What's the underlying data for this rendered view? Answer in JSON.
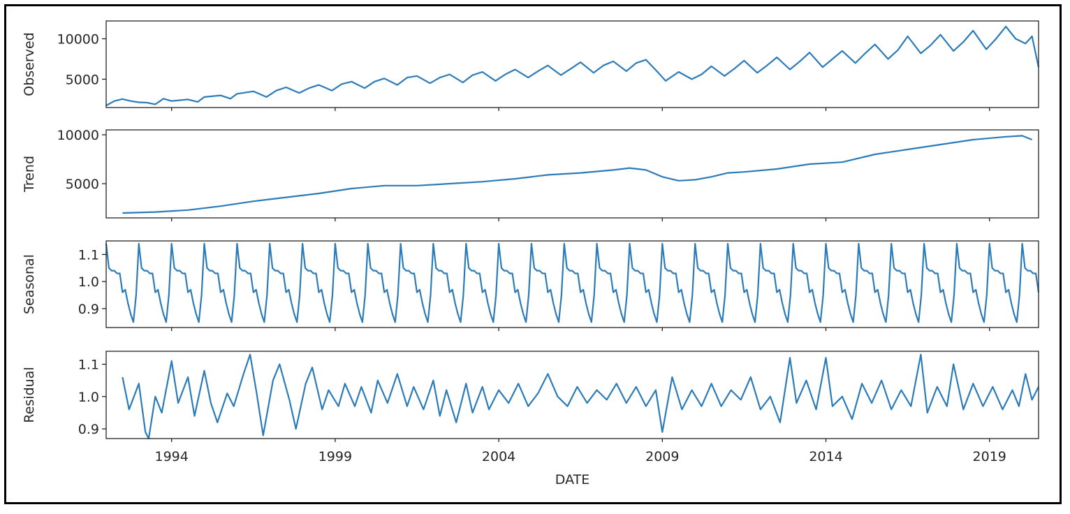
{
  "chart_data": {
    "type": "line",
    "series_color": "#2b7bb9",
    "x_label": "DATE",
    "x_range": [
      1992.0,
      2020.5
    ],
    "x_ticks": [
      1994,
      1999,
      2004,
      2009,
      2014,
      2019
    ],
    "x_tick_labels": [
      "1994",
      "1999",
      "2004",
      "2009",
      "2014",
      "2019"
    ],
    "grid": false,
    "panels": [
      {
        "name": "observed",
        "ylabel": "Observed",
        "ylim": [
          1500,
          12200
        ],
        "yticks": [
          5000,
          10000
        ],
        "ytick_labels": [
          "5000",
          "10000"
        ],
        "points": [
          [
            1992.0,
            1750
          ],
          [
            1992.25,
            2300
          ],
          [
            1992.5,
            2550
          ],
          [
            1992.75,
            2300
          ],
          [
            1993.0,
            2150
          ],
          [
            1993.25,
            2100
          ],
          [
            1993.5,
            1900
          ],
          [
            1993.75,
            2600
          ],
          [
            1994.0,
            2300
          ],
          [
            1994.5,
            2500
          ],
          [
            1994.8,
            2200
          ],
          [
            1995.0,
            2800
          ],
          [
            1995.5,
            3000
          ],
          [
            1995.8,
            2600
          ],
          [
            1996.0,
            3200
          ],
          [
            1996.5,
            3500
          ],
          [
            1996.9,
            2800
          ],
          [
            1997.2,
            3600
          ],
          [
            1997.5,
            4000
          ],
          [
            1997.9,
            3300
          ],
          [
            1998.2,
            3900
          ],
          [
            1998.5,
            4300
          ],
          [
            1998.9,
            3600
          ],
          [
            1999.2,
            4400
          ],
          [
            1999.5,
            4700
          ],
          [
            1999.9,
            3900
          ],
          [
            2000.2,
            4700
          ],
          [
            2000.5,
            5100
          ],
          [
            2000.9,
            4300
          ],
          [
            2001.2,
            5200
          ],
          [
            2001.5,
            5400
          ],
          [
            2001.9,
            4500
          ],
          [
            2002.2,
            5200
          ],
          [
            2002.5,
            5600
          ],
          [
            2002.9,
            4600
          ],
          [
            2003.2,
            5500
          ],
          [
            2003.5,
            5900
          ],
          [
            2003.9,
            4800
          ],
          [
            2004.2,
            5600
          ],
          [
            2004.5,
            6200
          ],
          [
            2004.9,
            5200
          ],
          [
            2005.2,
            6000
          ],
          [
            2005.5,
            6700
          ],
          [
            2005.9,
            5500
          ],
          [
            2006.2,
            6300
          ],
          [
            2006.5,
            7100
          ],
          [
            2006.9,
            5800
          ],
          [
            2007.2,
            6700
          ],
          [
            2007.5,
            7200
          ],
          [
            2007.9,
            6000
          ],
          [
            2008.2,
            7000
          ],
          [
            2008.5,
            7400
          ],
          [
            2008.9,
            5700
          ],
          [
            2009.1,
            4800
          ],
          [
            2009.5,
            5900
          ],
          [
            2009.9,
            5000
          ],
          [
            2010.2,
            5600
          ],
          [
            2010.5,
            6600
          ],
          [
            2010.9,
            5400
          ],
          [
            2011.2,
            6300
          ],
          [
            2011.5,
            7300
          ],
          [
            2011.9,
            5800
          ],
          [
            2012.2,
            6700
          ],
          [
            2012.5,
            7700
          ],
          [
            2012.9,
            6200
          ],
          [
            2013.2,
            7200
          ],
          [
            2013.5,
            8300
          ],
          [
            2013.9,
            6500
          ],
          [
            2014.2,
            7500
          ],
          [
            2014.5,
            8500
          ],
          [
            2014.9,
            7000
          ],
          [
            2015.2,
            8200
          ],
          [
            2015.5,
            9300
          ],
          [
            2015.9,
            7500
          ],
          [
            2016.2,
            8600
          ],
          [
            2016.5,
            10300
          ],
          [
            2016.9,
            8200
          ],
          [
            2017.2,
            9200
          ],
          [
            2017.5,
            10500
          ],
          [
            2017.9,
            8500
          ],
          [
            2018.2,
            9600
          ],
          [
            2018.5,
            11000
          ],
          [
            2018.9,
            8700
          ],
          [
            2019.2,
            10000
          ],
          [
            2019.5,
            11500
          ],
          [
            2019.8,
            10000
          ],
          [
            2020.1,
            9400
          ],
          [
            2020.3,
            10300
          ],
          [
            2020.5,
            6500
          ]
        ]
      },
      {
        "name": "trend",
        "ylabel": "Trend",
        "ylim": [
          1500,
          10500
        ],
        "yticks": [
          5000,
          10000
        ],
        "ytick_labels": [
          "5000",
          "10000"
        ],
        "points": [
          [
            1992.5,
            2000
          ],
          [
            1993.5,
            2100
          ],
          [
            1994.5,
            2300
          ],
          [
            1995.5,
            2700
          ],
          [
            1996.5,
            3200
          ],
          [
            1997.5,
            3600
          ],
          [
            1998.5,
            4000
          ],
          [
            1999.5,
            4500
          ],
          [
            2000.5,
            4800
          ],
          [
            2001.5,
            4800
          ],
          [
            2002.5,
            5000
          ],
          [
            2003.5,
            5200
          ],
          [
            2004.5,
            5500
          ],
          [
            2005.5,
            5900
          ],
          [
            2006.5,
            6100
          ],
          [
            2007.5,
            6400
          ],
          [
            2008.0,
            6600
          ],
          [
            2008.5,
            6400
          ],
          [
            2009.0,
            5700
          ],
          [
            2009.5,
            5300
          ],
          [
            2010.0,
            5400
          ],
          [
            2010.5,
            5700
          ],
          [
            2011.0,
            6100
          ],
          [
            2011.5,
            6200
          ],
          [
            2012.5,
            6500
          ],
          [
            2013.5,
            7000
          ],
          [
            2014.5,
            7200
          ],
          [
            2015.5,
            8000
          ],
          [
            2016.5,
            8500
          ],
          [
            2017.5,
            9000
          ],
          [
            2018.5,
            9500
          ],
          [
            2019.5,
            9800
          ],
          [
            2020.0,
            9900
          ],
          [
            2020.3,
            9500
          ]
        ]
      },
      {
        "name": "seasonal",
        "ylabel": "Seasonal",
        "ylim": [
          0.83,
          1.15
        ],
        "yticks": [
          0.9,
          1.0,
          1.1
        ],
        "ytick_labels": [
          "0.9",
          "1.0",
          "1.1"
        ],
        "cycle_start": 1992.0,
        "cycle_end": 2020.5,
        "month_factors": [
          1.14,
          1.05,
          1.04,
          1.04,
          1.03,
          1.03,
          0.96,
          0.97,
          0.92,
          0.88,
          0.85,
          0.95
        ]
      },
      {
        "name": "residual",
        "ylabel": "Residual",
        "ylim": [
          0.87,
          1.14
        ],
        "yticks": [
          0.9,
          1.0,
          1.1
        ],
        "ytick_labels": [
          "0.9",
          "1.0",
          "1.1"
        ],
        "points": [
          [
            1992.5,
            1.06
          ],
          [
            1992.7,
            0.96
          ],
          [
            1993.0,
            1.04
          ],
          [
            1993.2,
            0.89
          ],
          [
            1993.3,
            0.87
          ],
          [
            1993.5,
            1.0
          ],
          [
            1993.7,
            0.95
          ],
          [
            1994.0,
            1.11
          ],
          [
            1994.2,
            0.98
          ],
          [
            1994.5,
            1.06
          ],
          [
            1994.7,
            0.94
          ],
          [
            1995.0,
            1.08
          ],
          [
            1995.2,
            0.98
          ],
          [
            1995.4,
            0.92
          ],
          [
            1995.7,
            1.01
          ],
          [
            1995.9,
            0.97
          ],
          [
            1996.2,
            1.07
          ],
          [
            1996.4,
            1.13
          ],
          [
            1996.6,
            1.01
          ],
          [
            1996.8,
            0.88
          ],
          [
            1997.1,
            1.05
          ],
          [
            1997.3,
            1.1
          ],
          [
            1997.6,
            0.99
          ],
          [
            1997.8,
            0.9
          ],
          [
            1998.1,
            1.04
          ],
          [
            1998.3,
            1.09
          ],
          [
            1998.6,
            0.96
          ],
          [
            1998.8,
            1.02
          ],
          [
            1999.1,
            0.97
          ],
          [
            1999.3,
            1.04
          ],
          [
            1999.6,
            0.97
          ],
          [
            1999.8,
            1.03
          ],
          [
            2000.1,
            0.95
          ],
          [
            2000.3,
            1.05
          ],
          [
            2000.6,
            0.98
          ],
          [
            2000.9,
            1.07
          ],
          [
            2001.2,
            0.97
          ],
          [
            2001.4,
            1.03
          ],
          [
            2001.7,
            0.96
          ],
          [
            2002.0,
            1.05
          ],
          [
            2002.2,
            0.94
          ],
          [
            2002.4,
            1.02
          ],
          [
            2002.7,
            0.92
          ],
          [
            2003.0,
            1.04
          ],
          [
            2003.2,
            0.95
          ],
          [
            2003.5,
            1.03
          ],
          [
            2003.7,
            0.96
          ],
          [
            2004.0,
            1.02
          ],
          [
            2004.3,
            0.98
          ],
          [
            2004.6,
            1.04
          ],
          [
            2004.9,
            0.97
          ],
          [
            2005.2,
            1.01
          ],
          [
            2005.5,
            1.07
          ],
          [
            2005.8,
            1.0
          ],
          [
            2006.1,
            0.97
          ],
          [
            2006.4,
            1.03
          ],
          [
            2006.7,
            0.98
          ],
          [
            2007.0,
            1.02
          ],
          [
            2007.3,
            0.99
          ],
          [
            2007.6,
            1.04
          ],
          [
            2007.9,
            0.98
          ],
          [
            2008.2,
            1.03
          ],
          [
            2008.5,
            0.97
          ],
          [
            2008.8,
            1.02
          ],
          [
            2009.0,
            0.89
          ],
          [
            2009.3,
            1.06
          ],
          [
            2009.6,
            0.96
          ],
          [
            2009.9,
            1.02
          ],
          [
            2010.2,
            0.97
          ],
          [
            2010.5,
            1.04
          ],
          [
            2010.8,
            0.97
          ],
          [
            2011.1,
            1.02
          ],
          [
            2011.4,
            0.99
          ],
          [
            2011.7,
            1.06
          ],
          [
            2012.0,
            0.96
          ],
          [
            2012.3,
            1.0
          ],
          [
            2012.6,
            0.92
          ],
          [
            2012.9,
            1.12
          ],
          [
            2013.1,
            0.98
          ],
          [
            2013.4,
            1.05
          ],
          [
            2013.7,
            0.96
          ],
          [
            2014.0,
            1.12
          ],
          [
            2014.2,
            0.97
          ],
          [
            2014.5,
            1.0
          ],
          [
            2014.8,
            0.93
          ],
          [
            2015.1,
            1.04
          ],
          [
            2015.4,
            0.98
          ],
          [
            2015.7,
            1.05
          ],
          [
            2016.0,
            0.96
          ],
          [
            2016.3,
            1.02
          ],
          [
            2016.6,
            0.97
          ],
          [
            2016.9,
            1.13
          ],
          [
            2017.1,
            0.95
          ],
          [
            2017.4,
            1.03
          ],
          [
            2017.7,
            0.97
          ],
          [
            2017.9,
            1.1
          ],
          [
            2018.2,
            0.96
          ],
          [
            2018.5,
            1.04
          ],
          [
            2018.8,
            0.97
          ],
          [
            2019.1,
            1.03
          ],
          [
            2019.4,
            0.96
          ],
          [
            2019.7,
            1.02
          ],
          [
            2019.9,
            0.97
          ],
          [
            2020.1,
            1.07
          ],
          [
            2020.3,
            0.99
          ],
          [
            2020.5,
            1.03
          ]
        ]
      }
    ]
  }
}
